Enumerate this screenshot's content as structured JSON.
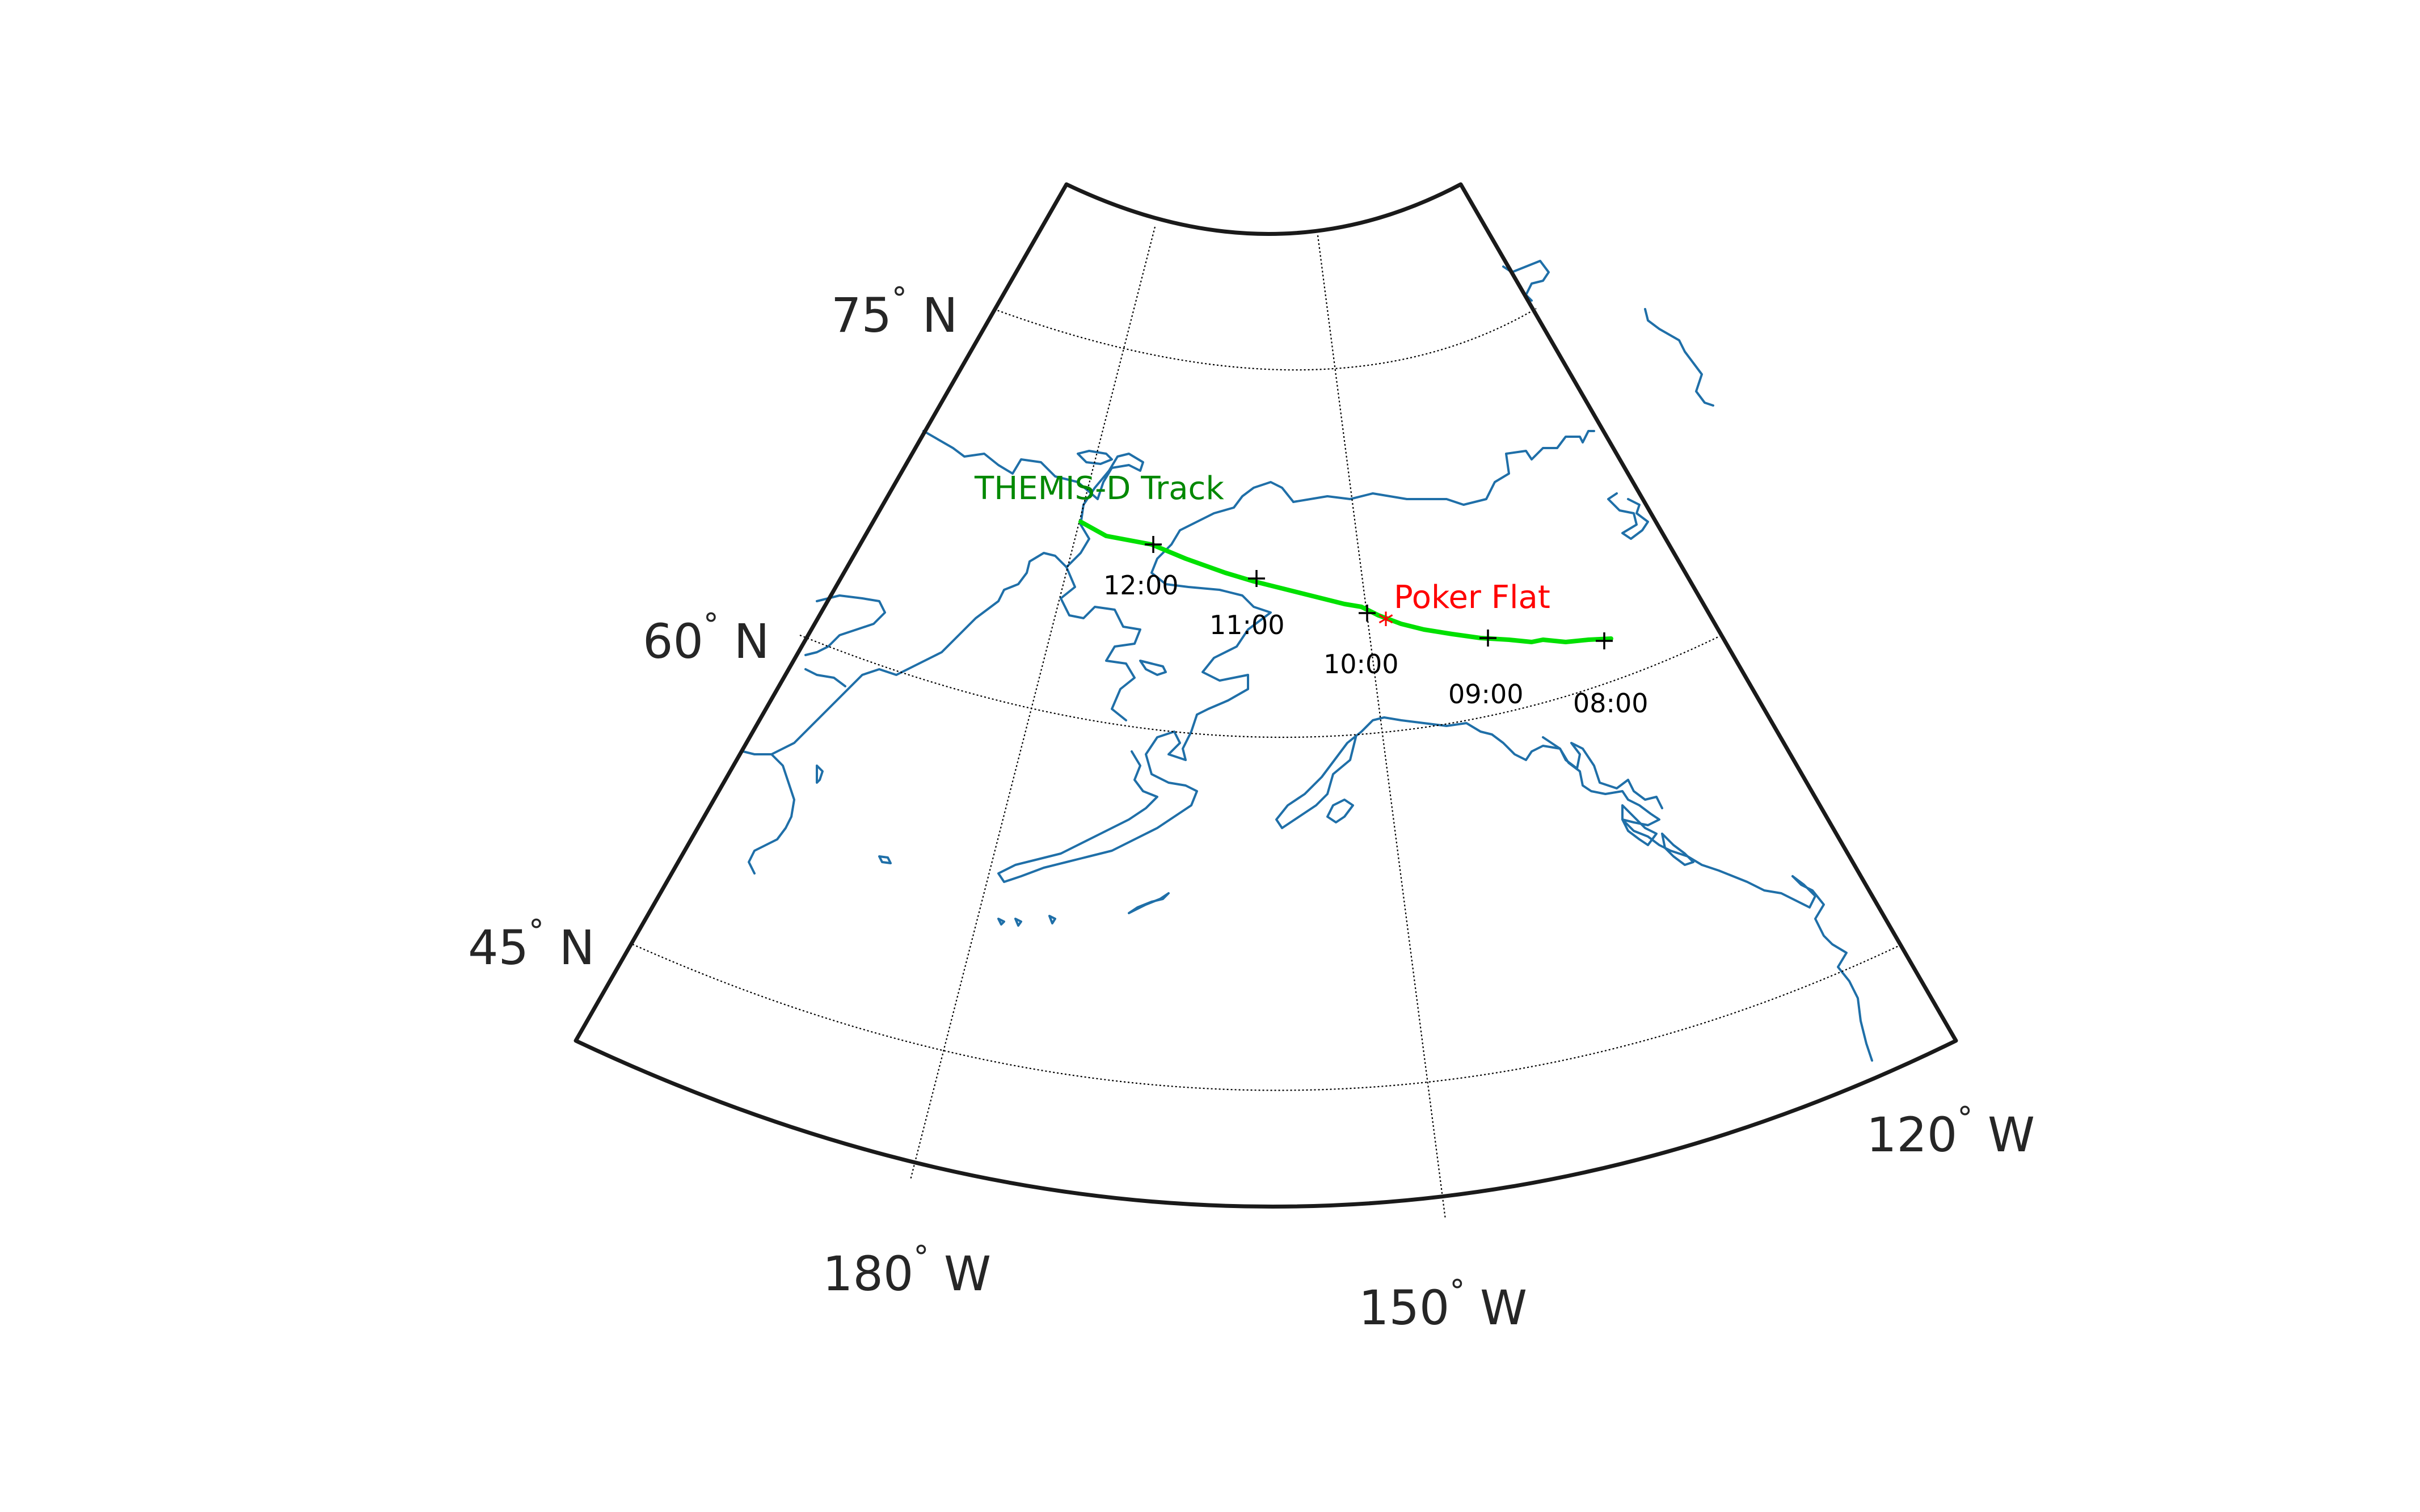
{
  "figure": {
    "type": "map",
    "projection": "conic",
    "grid": true,
    "colors": {
      "frame": "#1a1a1a",
      "grid": "#000000",
      "coast": "#1f6fa8",
      "track": "#00e000",
      "track_label": "#008800",
      "site": "#ff0000",
      "ticks": "#000000"
    }
  },
  "axes": {
    "lat_labels": [
      {
        "value": "75",
        "suffix": " N"
      },
      {
        "value": "60",
        "suffix": " N"
      },
      {
        "value": "45",
        "suffix": " N"
      }
    ],
    "lon_labels": [
      {
        "value": "180",
        "suffix": " W"
      },
      {
        "value": "150",
        "suffix": " W"
      },
      {
        "value": "120",
        "suffix": " W"
      }
    ],
    "degree_symbol": "°"
  },
  "track": {
    "label": "THEMIS-D Track",
    "time_labels": [
      "12:00",
      "11:00",
      "10:00",
      "09:00",
      "08:00"
    ]
  },
  "site": {
    "label": "Poker Flat",
    "marker": "*"
  }
}
